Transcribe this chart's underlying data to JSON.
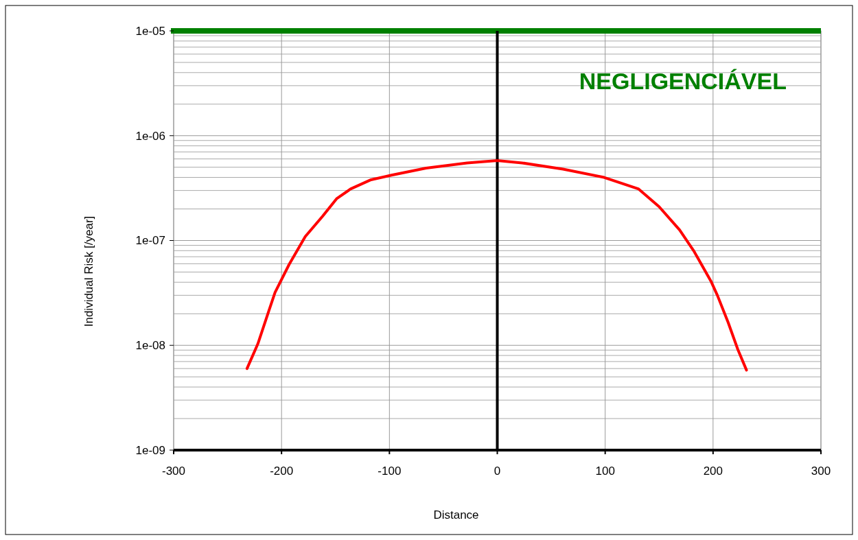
{
  "chart_data": {
    "type": "line",
    "xlabel": "Distance",
    "ylabel": "Individual Risk [/year]",
    "log": "y",
    "grid": true,
    "line_style": "solid",
    "xlim": [
      -300,
      300
    ],
    "xticks": [
      -300,
      -200,
      -100,
      0,
      100,
      200,
      300
    ],
    "ylim": [
      1e-09,
      1e-05
    ],
    "yticks": [
      {
        "value": 1e-09,
        "label": "1e-09"
      },
      {
        "value": 1e-08,
        "label": "1e-08"
      },
      {
        "value": 1e-07,
        "label": "1e-07"
      },
      {
        "value": 1e-06,
        "label": "1e-06"
      },
      {
        "value": 1e-05,
        "label": "1e-05"
      }
    ],
    "ref_lines": [
      {
        "axis": "y",
        "value": 1e-05,
        "label": null,
        "color": "#008000"
      },
      {
        "axis": "x",
        "value": 0,
        "label": null,
        "color": "#000000"
      }
    ],
    "annotations": [
      "NEGLIGENCIÁVEL"
    ],
    "series": [
      {
        "color": "#ff0000",
        "x": [
          -232,
          -222,
          -212,
          -206,
          -193,
          -178,
          -162,
          -149,
          -136,
          -117,
          -98,
          -66,
          -28,
          0,
          23,
          61,
          99,
          131,
          150,
          169,
          182,
          198,
          204,
          214,
          223,
          231
        ],
        "values": [
          6e-09,
          1.03e-08,
          2.1e-08,
          3.2e-08,
          5.9e-08,
          1.09e-07,
          1.7e-07,
          2.5e-07,
          3.1e-07,
          3.8e-07,
          4.2e-07,
          4.9e-07,
          5.5e-07,
          5.8e-07,
          5.5e-07,
          4.8e-07,
          4e-07,
          3.1e-07,
          2.1e-07,
          1.26e-07,
          8e-08,
          4.1e-08,
          3e-08,
          1.65e-08,
          9.1e-09,
          5.8e-09
        ]
      }
    ]
  }
}
